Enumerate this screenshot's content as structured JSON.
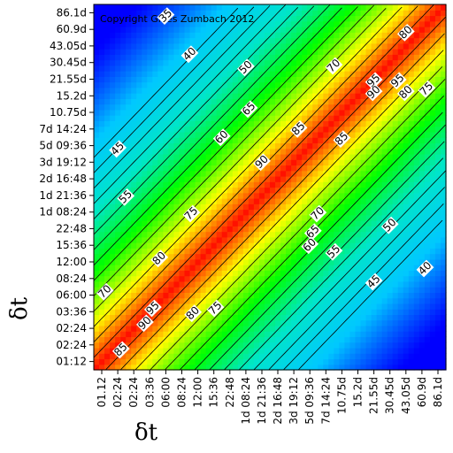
{
  "chart_data": {
    "type": "heatmap",
    "title": "",
    "copyright": "Copyright Gilles Zumbach 2012",
    "xlabel": "δt",
    "ylabel": "δt",
    "tick_labels": [
      "01:12",
      "02:24",
      "02:24",
      "03:36",
      "06:00",
      "08:24",
      "12:00",
      "15:36",
      "22:48",
      "1d 08:24",
      "1d 21:36",
      "2d 16:48",
      "3d 19:12",
      "5d 09:36",
      "7d 14:24",
      "10.75d",
      "15.2d",
      "21.55d",
      "30.45d",
      "43.05d",
      "60.9d",
      "86.1d"
    ],
    "x_tick_labels": [
      "01.12",
      "02:24",
      "02:24",
      "03:36",
      "06:00",
      "08:24",
      "12:00",
      "15:36",
      "22:48",
      "1d 08:24",
      "1d 21:36",
      "2d 16:48",
      "3d 19:12",
      "5d 09:36",
      "7d 14:24",
      "10.75d",
      "15.2d",
      "21.55d",
      "30.45d",
      "43.05d",
      "60.9d",
      "86.1d"
    ],
    "y_tick_labels": [
      "01:12",
      "02:24",
      "02:24",
      "03:36",
      "06:00",
      "08:24",
      "12:00",
      "15:36",
      "22:48",
      "1d 08:24",
      "1d 21:36",
      "2d 16:48",
      "3d 19:12",
      "5d 09:36",
      "7d 14:24",
      "10.75d",
      "15.2d",
      "21.55d",
      "30.45d",
      "43.05d",
      "60.9d",
      "86.1d"
    ],
    "value_range": [
      25,
      100
    ],
    "contour_levels": [
      30,
      35,
      40,
      45,
      50,
      55,
      60,
      65,
      70,
      75,
      80,
      85,
      90,
      95
    ],
    "contour_labels": [
      {
        "text": "35",
        "x": 4.0,
        "y": 20.8
      },
      {
        "text": "40",
        "x": 5.5,
        "y": 18.5
      },
      {
        "text": "50",
        "x": 9.0,
        "y": 17.7
      },
      {
        "text": "70",
        "x": 14.5,
        "y": 17.8
      },
      {
        "text": "80",
        "x": 19.0,
        "y": 19.8
      },
      {
        "text": "95",
        "x": 17.0,
        "y": 16.9
      },
      {
        "text": "95",
        "x": 18.5,
        "y": 16.9
      },
      {
        "text": "90",
        "x": 17.0,
        "y": 16.2
      },
      {
        "text": "80",
        "x": 19.0,
        "y": 16.2
      },
      {
        "text": "75",
        "x": 20.3,
        "y": 16.4
      },
      {
        "text": "65",
        "x": 9.2,
        "y": 15.2
      },
      {
        "text": "85",
        "x": 12.3,
        "y": 14.0
      },
      {
        "text": "85",
        "x": 15.0,
        "y": 13.4
      },
      {
        "text": "60",
        "x": 7.5,
        "y": 13.5
      },
      {
        "text": "90",
        "x": 10.0,
        "y": 12.0
      },
      {
        "text": "45",
        "x": 1.0,
        "y": 12.8
      },
      {
        "text": "55",
        "x": 1.5,
        "y": 9.9
      },
      {
        "text": "75",
        "x": 5.6,
        "y": 8.9
      },
      {
        "text": "70",
        "x": 13.5,
        "y": 8.9
      },
      {
        "text": "65",
        "x": 13.2,
        "y": 7.8
      },
      {
        "text": "60",
        "x": 13.0,
        "y": 7.0
      },
      {
        "text": "55",
        "x": 14.5,
        "y": 6.6
      },
      {
        "text": "50",
        "x": 18.0,
        "y": 8.2
      },
      {
        "text": "80",
        "x": 3.6,
        "y": 6.2
      },
      {
        "text": "45",
        "x": 17.0,
        "y": 4.8
      },
      {
        "text": "40",
        "x": 20.2,
        "y": 5.6
      },
      {
        "text": "70",
        "x": 0.2,
        "y": 4.2
      },
      {
        "text": "95",
        "x": 3.2,
        "y": 3.2
      },
      {
        "text": "90",
        "x": 2.7,
        "y": 2.3
      },
      {
        "text": "80",
        "x": 5.7,
        "y": 2.9
      },
      {
        "text": "75",
        "x": 7.1,
        "y": 3.2
      },
      {
        "text": "85",
        "x": 1.2,
        "y": 0.7
      }
    ],
    "colorscale": [
      "#0000ff",
      "#00c8ff",
      "#00e6c8",
      "#00ff00",
      "#ffff00",
      "#ff0000"
    ],
    "grid": false,
    "legend": "none"
  }
}
